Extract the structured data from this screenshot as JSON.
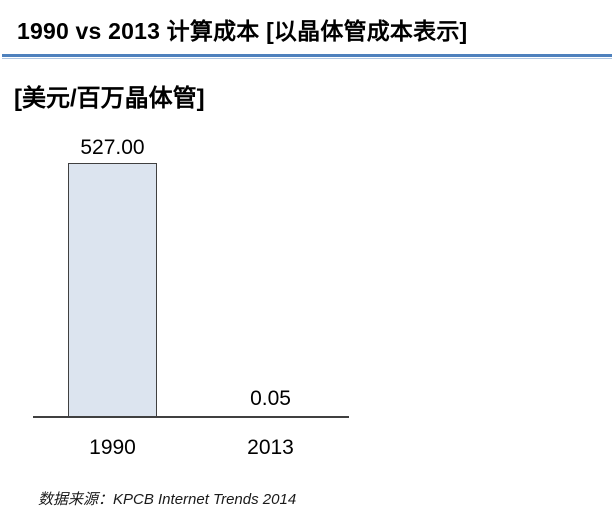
{
  "header": {
    "title": "1990 vs 2013 计算成本 [以晶体管成本表示]",
    "rule_color": "#4E81BD"
  },
  "subtitle": "[美元/百万晶体管]",
  "chart_data": {
    "type": "bar",
    "title": "1990 vs 2013 计算成本 [以晶体管成本表示]",
    "ylabel": "[美元/百万晶体管]",
    "categories": [
      "1990",
      "2013"
    ],
    "values": [
      527.0,
      0.05
    ],
    "value_labels": [
      "527.00",
      "0.05"
    ],
    "ylim": [
      0,
      527
    ],
    "grid": false,
    "legend": false,
    "bar_color": "#DCE4EF",
    "bar_border_color": "#404040",
    "axis_color": "#404040"
  },
  "footer": {
    "source": "数据来源：KPCB Internet Trends 2014"
  }
}
